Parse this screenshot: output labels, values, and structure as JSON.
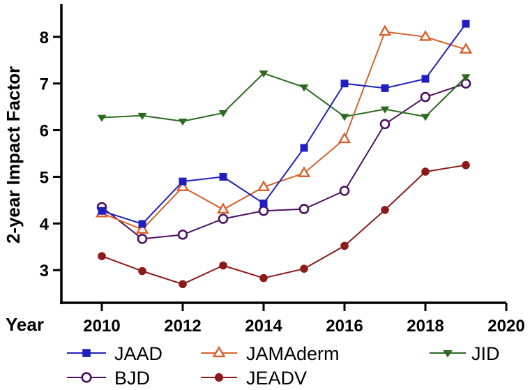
{
  "chart_data": {
    "type": "line",
    "title": "",
    "xlabel": "Year",
    "ylabel": "2-year Impact Factor",
    "xlim": [
      2009,
      2020
    ],
    "ylim": [
      2.3,
      8.7
    ],
    "x_ticks": [
      2010,
      2012,
      2014,
      2016,
      2018,
      2020
    ],
    "y_ticks": [
      3,
      4,
      5,
      6,
      7,
      8
    ],
    "grid": false,
    "legend_position": "bottom",
    "x": [
      2010,
      2011,
      2012,
      2013,
      2014,
      2015,
      2016,
      2017,
      2018,
      2019
    ],
    "series": [
      {
        "name": "JAAD",
        "color": "#1f1fbf",
        "marker": "square-filled",
        "values": [
          4.27,
          3.99,
          4.9,
          5.0,
          4.43,
          5.62,
          7.0,
          6.9,
          7.1,
          8.28
        ]
      },
      {
        "name": "JAMAderm",
        "color": "#d9602b",
        "marker": "triangle-up-open",
        "values": [
          4.22,
          3.87,
          4.78,
          4.3,
          4.78,
          5.08,
          5.81,
          8.11,
          8.0,
          7.73
        ]
      },
      {
        "name": "JID",
        "color": "#2b6a1f",
        "marker": "triangle-down-filled",
        "values": [
          6.27,
          6.31,
          6.19,
          6.37,
          7.22,
          6.92,
          6.29,
          6.45,
          6.29,
          7.14
        ]
      },
      {
        "name": "BJD",
        "color": "#4a1060",
        "marker": "circle-open",
        "values": [
          4.35,
          3.67,
          3.76,
          4.1,
          4.27,
          4.31,
          4.7,
          6.13,
          6.71,
          7.0
        ]
      },
      {
        "name": "JEADV",
        "color": "#8b1a1a",
        "marker": "circle-filled",
        "values": [
          3.3,
          2.98,
          2.7,
          3.1,
          2.83,
          3.03,
          3.52,
          4.29,
          5.11,
          5.25
        ]
      }
    ]
  }
}
